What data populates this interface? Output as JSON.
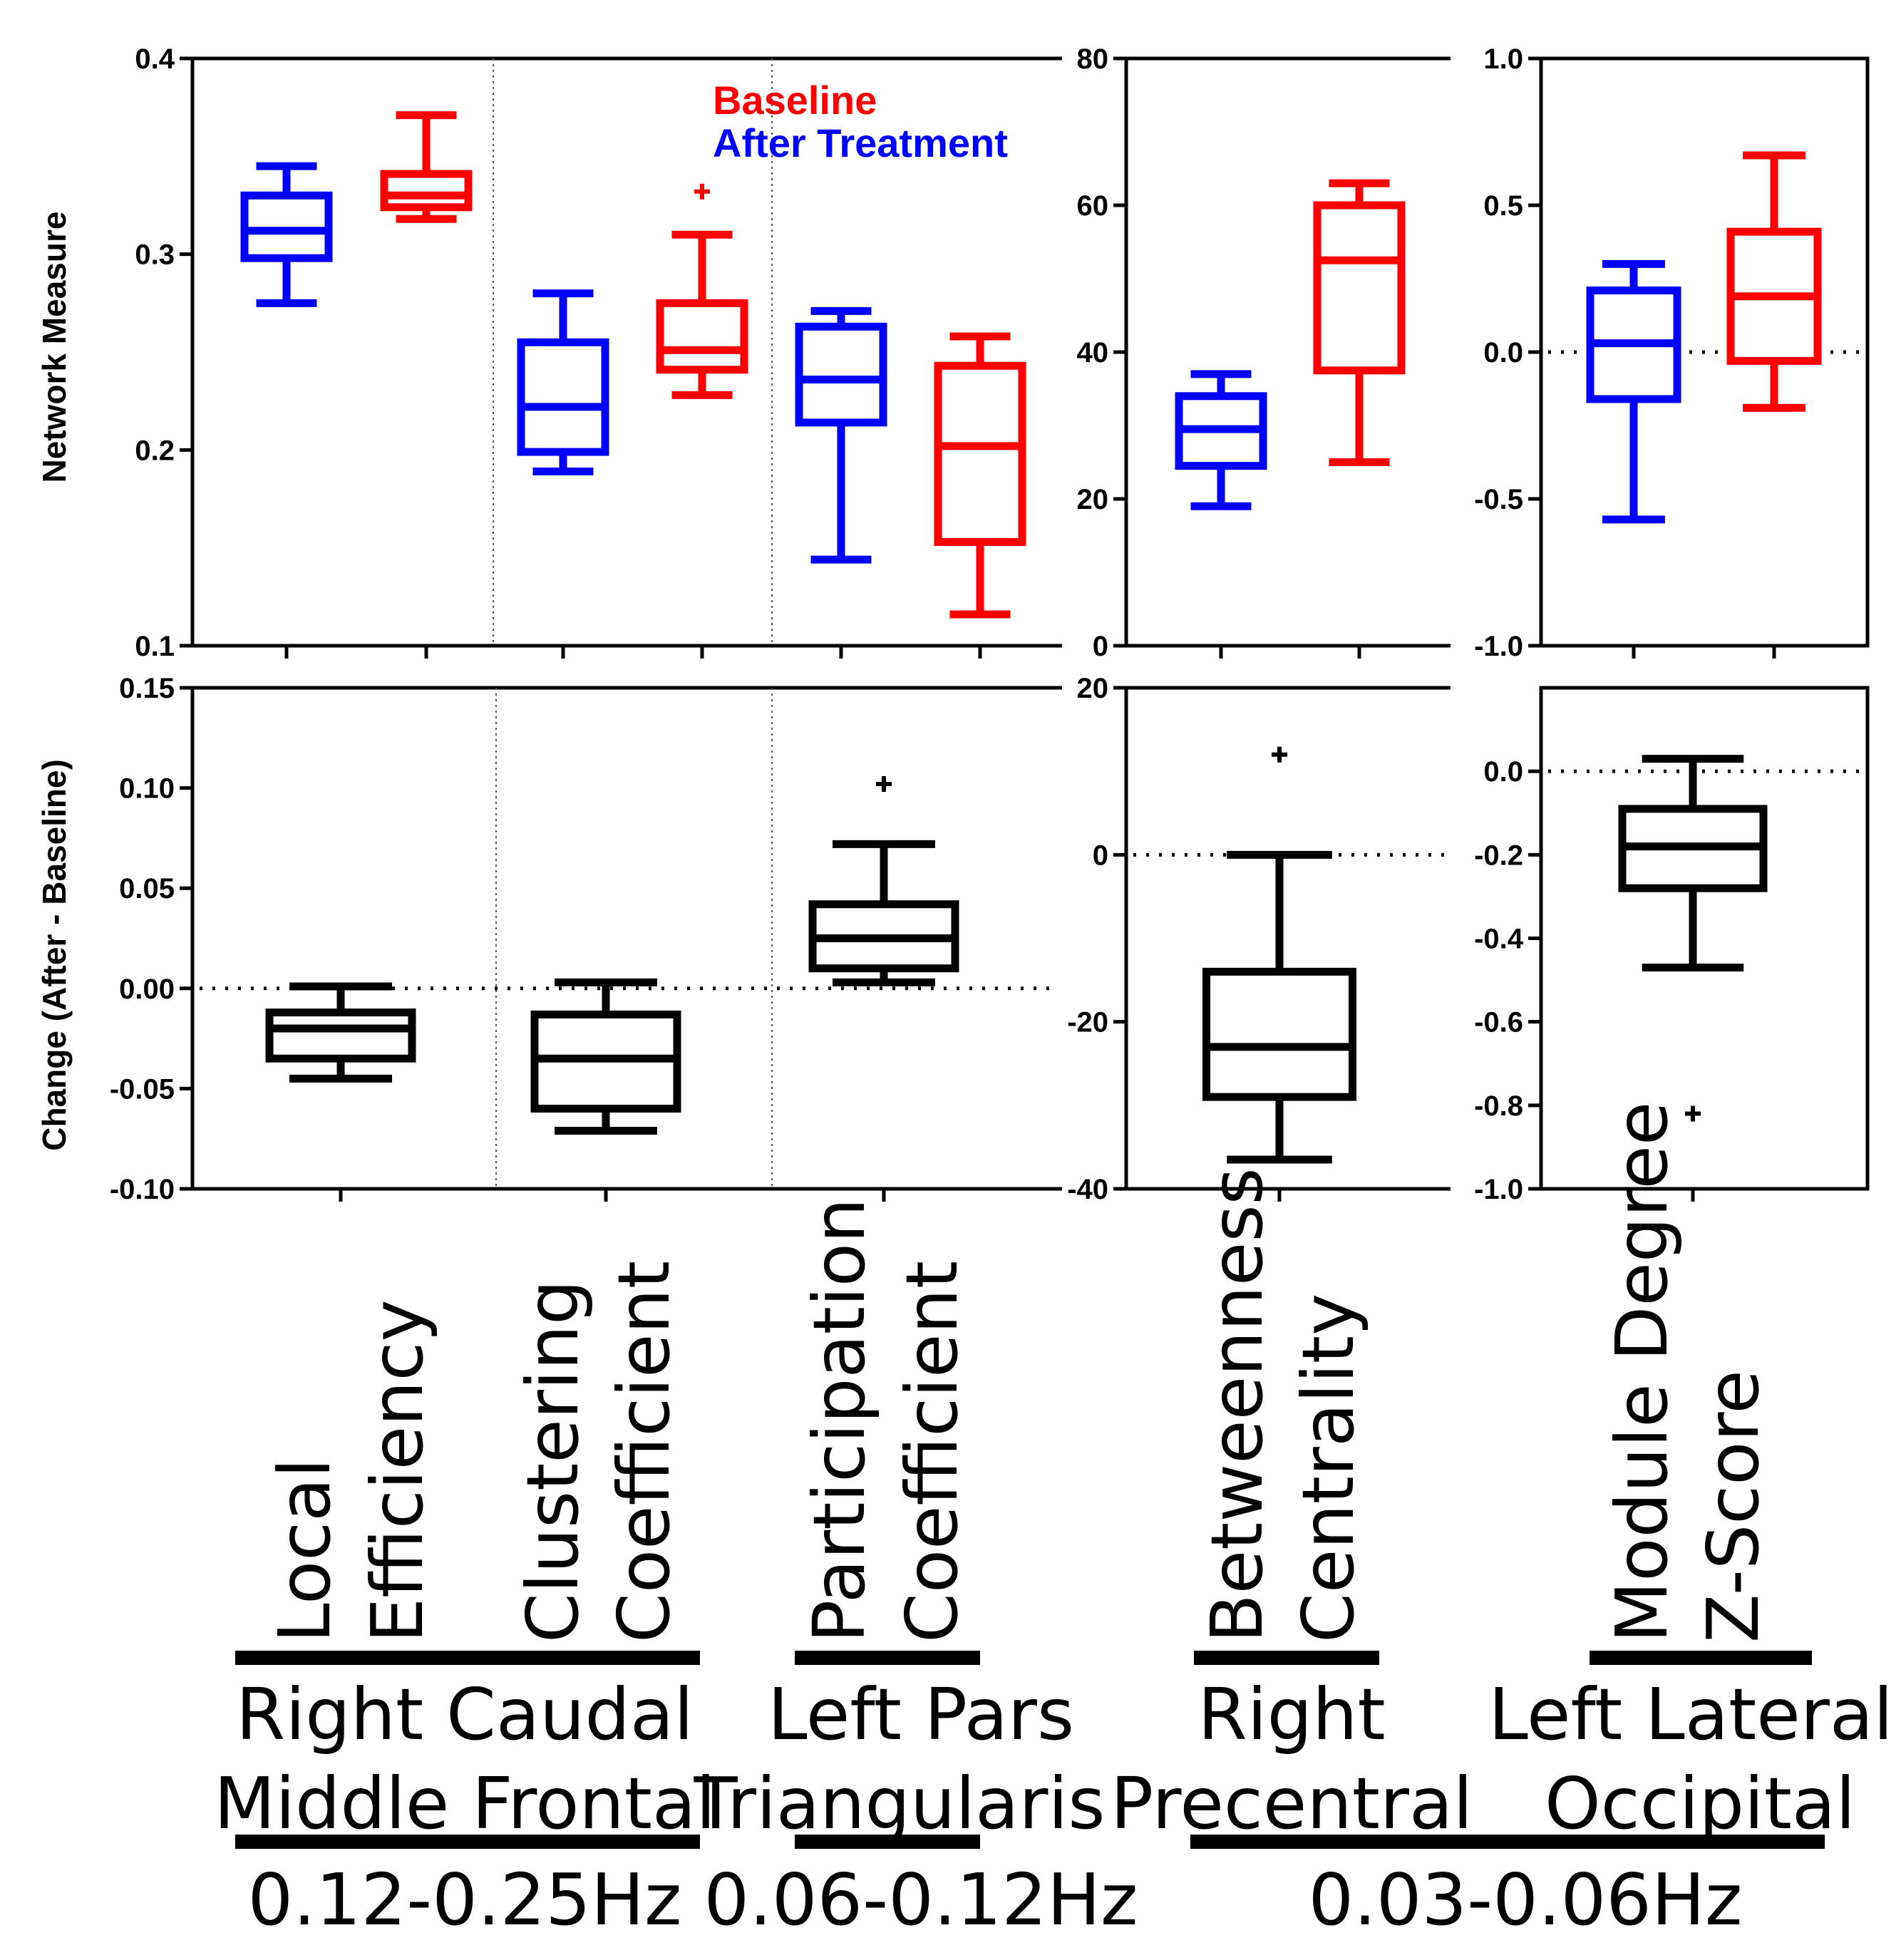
{
  "colors": {
    "baseline": "#ff0000",
    "after": "#0000ff",
    "change": "#000000"
  },
  "legend": {
    "baseline": "Baseline",
    "after": "After Treatment"
  },
  "axis_titles": {
    "top": "Network Measure",
    "bottom": "Change (After - Baseline)"
  },
  "chart_data": [
    {
      "id": "top-left",
      "type": "box",
      "title": "",
      "xlabel": "",
      "ylabel": "Network Measure",
      "ylim": [
        0.1,
        0.4
      ],
      "ticks": [
        {
          "v": 0.1,
          "t": "0.1"
        },
        {
          "v": 0.2,
          "t": "0.2"
        },
        {
          "v": 0.3,
          "t": "0.3"
        },
        {
          "v": 0.4,
          "t": "0.4"
        }
      ],
      "zero_line": null,
      "separators": [
        2,
        4
      ],
      "slots": 6,
      "boxes": [
        {
          "slot": 0,
          "series": "after",
          "measure": "Local Efficiency",
          "min": 0.275,
          "q1": 0.298,
          "median": 0.312,
          "q3": 0.33,
          "max": 0.345,
          "outliers": []
        },
        {
          "slot": 1,
          "series": "baseline",
          "measure": "Local Efficiency",
          "min": 0.318,
          "q1": 0.324,
          "median": 0.33,
          "q3": 0.341,
          "max": 0.371,
          "outliers": []
        },
        {
          "slot": 2,
          "series": "after",
          "measure": "Clustering Coefficient",
          "min": 0.189,
          "q1": 0.199,
          "median": 0.222,
          "q3": 0.255,
          "max": 0.28,
          "outliers": []
        },
        {
          "slot": 3,
          "series": "baseline",
          "measure": "Clustering Coefficient",
          "min": 0.228,
          "q1": 0.241,
          "median": 0.251,
          "q3": 0.275,
          "max": 0.31,
          "outliers": [
            0.332
          ]
        },
        {
          "slot": 4,
          "series": "after",
          "measure": "Participation Coefficient",
          "min": 0.144,
          "q1": 0.214,
          "median": 0.236,
          "q3": 0.263,
          "max": 0.271,
          "outliers": []
        },
        {
          "slot": 5,
          "series": "baseline",
          "measure": "Participation Coefficient",
          "min": 0.116,
          "q1": 0.153,
          "median": 0.202,
          "q3": 0.243,
          "max": 0.258,
          "outliers": []
        }
      ]
    },
    {
      "id": "top-mid",
      "type": "box",
      "title": "",
      "xlabel": "",
      "ylabel": "",
      "ylim": [
        0,
        80
      ],
      "ticks": [
        {
          "v": 0,
          "t": "0"
        },
        {
          "v": 20,
          "t": "20"
        },
        {
          "v": 40,
          "t": "40"
        },
        {
          "v": 60,
          "t": "60"
        },
        {
          "v": 80,
          "t": "80"
        }
      ],
      "zero_line": null,
      "separators": [],
      "slots": 2,
      "boxes": [
        {
          "slot": 0,
          "series": "after",
          "measure": "Betweenness Centrality",
          "min": 19.0,
          "q1": 24.5,
          "median": 29.5,
          "q3": 34.0,
          "max": 37.0,
          "outliers": []
        },
        {
          "slot": 1,
          "series": "baseline",
          "measure": "Betweenness Centrality",
          "min": 25.0,
          "q1": 37.5,
          "median": 52.5,
          "q3": 60.0,
          "max": 63.0,
          "outliers": []
        }
      ]
    },
    {
      "id": "top-right",
      "type": "box",
      "title": "",
      "xlabel": "",
      "ylabel": "",
      "ylim": [
        -1.0,
        1.0
      ],
      "ticks": [
        {
          "v": -1.0,
          "t": "-1.0"
        },
        {
          "v": -0.5,
          "t": "-0.5"
        },
        {
          "v": 0.0,
          "t": "0.0"
        },
        {
          "v": 0.5,
          "t": "0.5"
        },
        {
          "v": 1.0,
          "t": "1.0"
        }
      ],
      "zero_line": 0,
      "separators": [],
      "slots": 2,
      "boxes": [
        {
          "slot": 0,
          "series": "after",
          "measure": "Module Degree Z-Score",
          "min": -0.57,
          "q1": -0.16,
          "median": 0.03,
          "q3": 0.21,
          "max": 0.3,
          "outliers": []
        },
        {
          "slot": 1,
          "series": "baseline",
          "measure": "Module Degree Z-Score",
          "min": -0.19,
          "q1": -0.03,
          "median": 0.19,
          "q3": 0.41,
          "max": 0.67,
          "outliers": []
        }
      ]
    },
    {
      "id": "bottom-left",
      "type": "box",
      "title": "",
      "xlabel": "",
      "ylabel": "Change (After - Baseline)",
      "ylim": [
        -0.1,
        0.15
      ],
      "ticks": [
        {
          "v": -0.1,
          "t": "-0.10"
        },
        {
          "v": -0.05,
          "t": "-0.05"
        },
        {
          "v": 0.0,
          "t": "0.00"
        },
        {
          "v": 0.05,
          "t": "0.05"
        },
        {
          "v": 0.1,
          "t": "0.10"
        },
        {
          "v": 0.15,
          "t": "0.15"
        }
      ],
      "zero_line": 0,
      "separators": [
        1,
        2
      ],
      "slots": 3,
      "boxes": [
        {
          "slot": 0,
          "series": "change",
          "measure": "Local Efficiency",
          "min": -0.045,
          "q1": -0.035,
          "median": -0.02,
          "q3": -0.012,
          "max": 0.001,
          "outliers": []
        },
        {
          "slot": 1,
          "series": "change",
          "measure": "Clustering Coefficient",
          "min": -0.071,
          "q1": -0.06,
          "median": -0.035,
          "q3": -0.013,
          "max": 0.003,
          "outliers": []
        },
        {
          "slot": 2,
          "series": "change",
          "measure": "Participation Coefficient",
          "min": 0.003,
          "q1": 0.01,
          "median": 0.025,
          "q3": 0.042,
          "max": 0.072,
          "outliers": [
            0.102
          ]
        }
      ]
    },
    {
      "id": "bottom-mid",
      "type": "box",
      "title": "",
      "xlabel": "",
      "ylabel": "",
      "ylim": [
        -40,
        20
      ],
      "ticks": [
        {
          "v": -40,
          "t": "-40"
        },
        {
          "v": -20,
          "t": "-20"
        },
        {
          "v": 0,
          "t": "0"
        },
        {
          "v": 20,
          "t": "20"
        }
      ],
      "zero_line": 0,
      "separators": [],
      "slots": 1,
      "boxes": [
        {
          "slot": 0,
          "series": "change",
          "measure": "Betweenness Centrality",
          "min": -36.5,
          "q1": -29.0,
          "median": -23.0,
          "q3": -14.0,
          "max": 0.0,
          "outliers": [
            12.0
          ]
        }
      ]
    },
    {
      "id": "bottom-right",
      "type": "box",
      "title": "",
      "xlabel": "",
      "ylabel": "",
      "ylim": [
        -1.0,
        0.2
      ],
      "ticks": [
        {
          "v": -1.0,
          "t": "-1.0"
        },
        {
          "v": -0.8,
          "t": "-0.8"
        },
        {
          "v": -0.6,
          "t": "-0.6"
        },
        {
          "v": -0.4,
          "t": "-0.4"
        },
        {
          "v": -0.2,
          "t": "-0.2"
        },
        {
          "v": 0.0,
          "t": "0.0"
        }
      ],
      "zero_line": 0,
      "separators": [],
      "slots": 1,
      "boxes": [
        {
          "slot": 0,
          "series": "change",
          "measure": "Module Degree Z-Score",
          "min": -0.47,
          "q1": -0.28,
          "median": -0.18,
          "q3": -0.09,
          "max": 0.03,
          "outliers": [
            -0.82
          ]
        }
      ]
    }
  ],
  "categories": [
    {
      "id": "local-efficiency",
      "lines": [
        "Local",
        "Efficiency"
      ]
    },
    {
      "id": "clustering-coefficient",
      "lines": [
        "Clustering",
        "Coefficient"
      ]
    },
    {
      "id": "participation-coefficient",
      "lines": [
        "Participation",
        "Coefficient"
      ]
    },
    {
      "id": "betweenness-centrality",
      "lines": [
        "Betweenness",
        "Centrality"
      ]
    },
    {
      "id": "module-degree-z-score",
      "lines": [
        "Module Degree",
        "Z-Score"
      ]
    }
  ],
  "regions": [
    {
      "id": "right-caudal-middle-frontal",
      "lines": [
        "Right Caudal",
        "Middle Frontal"
      ]
    },
    {
      "id": "left-pars-triangularis",
      "lines": [
        "Left Pars",
        "Triangularis"
      ]
    },
    {
      "id": "right-precentral",
      "lines": [
        "Right",
        "Precentral"
      ]
    },
    {
      "id": "left-lateral-occipital",
      "lines": [
        "Left Lateral",
        "Occipital"
      ]
    }
  ],
  "bands": [
    {
      "id": "band-high",
      "label": "0.12-0.25Hz"
    },
    {
      "id": "band-mid",
      "label": "0.06-0.12Hz"
    },
    {
      "id": "band-low",
      "label": "0.03-0.06Hz"
    }
  ]
}
